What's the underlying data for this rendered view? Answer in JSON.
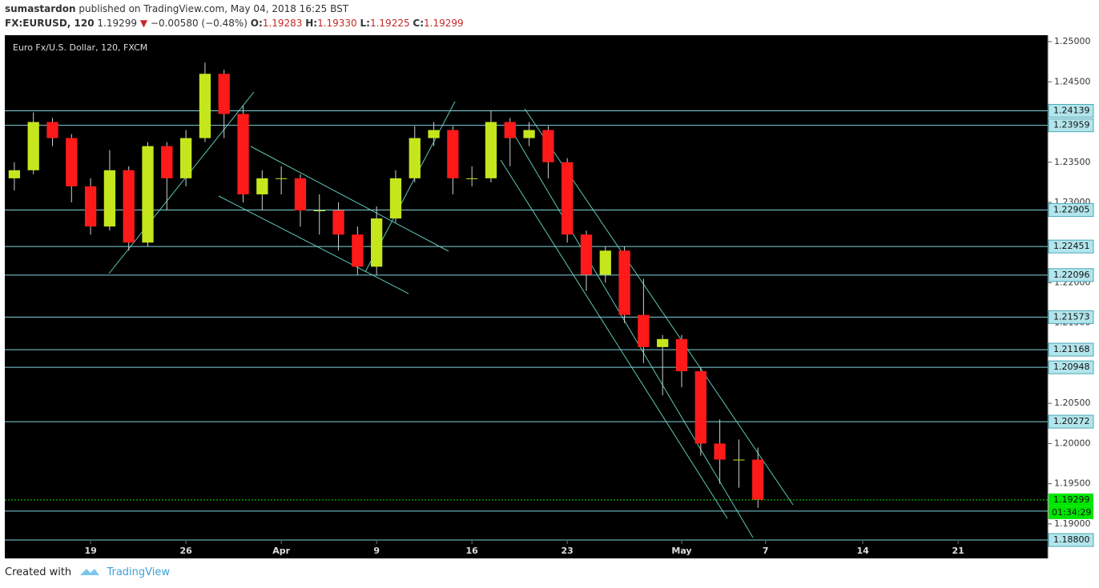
{
  "header": {
    "author": "sumastardon",
    "published": "published on TradingView.com, May 04, 2018 16:25 BST"
  },
  "legend": {
    "symbol": "FX:EURUSD, 120",
    "last": "1.19299",
    "arrow": "▼",
    "change": "−0.00580 (−0.48%)",
    "o_label": "O:",
    "o": "1.19283",
    "h_label": "H:",
    "h": "1.19330",
    "l_label": "L:",
    "l": "1.19225",
    "c_label": "C:",
    "c": "1.19299"
  },
  "chart_data": {
    "type": "candlestick",
    "title": "Euro Fx/U.S. Dollar, 120, FXCM",
    "x": [
      0,
      1,
      2,
      3,
      4,
      5,
      6,
      7,
      8,
      9,
      10,
      11,
      12,
      13,
      14,
      15,
      16,
      17,
      18,
      19,
      20,
      21,
      22,
      23,
      24,
      25,
      26,
      27,
      28,
      29,
      30,
      31,
      32,
      33,
      34,
      35,
      36,
      37,
      38,
      39
    ],
    "open": [
      1.233,
      1.234,
      1.24,
      1.238,
      1.232,
      1.227,
      1.234,
      1.225,
      1.237,
      1.233,
      1.238,
      1.246,
      1.241,
      1.231,
      1.233,
      1.233,
      1.229,
      1.229,
      1.226,
      1.222,
      1.228,
      1.233,
      1.238,
      1.239,
      1.233,
      1.233,
      1.24,
      1.238,
      1.239,
      1.235,
      1.226,
      1.221,
      1.224,
      1.216,
      1.212,
      1.213,
      1.209,
      1.2,
      1.198,
      1.198
    ],
    "high": [
      1.235,
      1.2412,
      1.2405,
      1.2385,
      1.233,
      1.2365,
      1.2345,
      1.2375,
      1.2375,
      1.239,
      1.2474,
      1.2465,
      1.242,
      1.234,
      1.2345,
      1.2335,
      1.231,
      1.23,
      1.227,
      1.2295,
      1.234,
      1.2395,
      1.24,
      1.2395,
      1.2345,
      1.2414,
      1.2405,
      1.24,
      1.2395,
      1.2355,
      1.2265,
      1.2245,
      1.2245,
      1.2205,
      1.2135,
      1.2135,
      1.2095,
      1.203,
      1.2005,
      1.1995
    ],
    "low": [
      1.2315,
      1.2335,
      1.237,
      1.23,
      1.226,
      1.2265,
      1.224,
      1.2245,
      1.229,
      1.232,
      1.2375,
      1.238,
      1.23,
      1.229,
      1.231,
      1.227,
      1.226,
      1.224,
      1.221,
      1.221,
      1.2275,
      1.2325,
      1.237,
      1.231,
      1.232,
      1.2325,
      1.2345,
      1.237,
      1.233,
      1.225,
      1.219,
      1.22,
      1.215,
      1.21,
      1.206,
      1.207,
      1.1985,
      1.195,
      1.1945,
      1.192
    ],
    "close": [
      1.234,
      1.24,
      1.238,
      1.232,
      1.227,
      1.234,
      1.225,
      1.237,
      1.233,
      1.238,
      1.246,
      1.241,
      1.231,
      1.233,
      1.233,
      1.229,
      1.229,
      1.226,
      1.222,
      1.228,
      1.233,
      1.238,
      1.239,
      1.233,
      1.233,
      1.24,
      1.238,
      1.239,
      1.235,
      1.226,
      1.221,
      1.224,
      1.216,
      1.212,
      1.213,
      1.209,
      1.2,
      1.198,
      1.198,
      1.193
    ],
    "up_color": "#c5e61c",
    "down_color": "#ff1a1a",
    "wick_color": "#cfcfcf",
    "level_color": "#7fd3dc",
    "last_color": "#00e600",
    "xlim": [
      -0.5,
      54.2
    ],
    "xticks": [
      {
        "value": 4,
        "label": "19"
      },
      {
        "value": 9,
        "label": "26"
      },
      {
        "value": 14,
        "label": "Apr"
      },
      {
        "value": 19,
        "label": "9"
      },
      {
        "value": 24,
        "label": "16"
      },
      {
        "value": 29,
        "label": "23"
      },
      {
        "value": 35,
        "label": "May"
      },
      {
        "value": 39.4,
        "label": "7"
      },
      {
        "value": 44.5,
        "label": "14"
      },
      {
        "value": 49.5,
        "label": "21"
      }
    ],
    "ylim": [
      1.1879,
      1.2508
    ],
    "yticks": [
      {
        "value": 1.25,
        "label": "1.25000"
      },
      {
        "value": 1.245,
        "label": "1.24500"
      },
      {
        "value": 1.235,
        "label": "1.23500"
      },
      {
        "value": 1.23,
        "label": "1.23000"
      },
      {
        "value": 1.22,
        "label": "1.22000"
      },
      {
        "value": 1.215,
        "label": "1.21500"
      },
      {
        "value": 1.205,
        "label": "1.20500"
      },
      {
        "value": 1.2,
        "label": "1.20000"
      },
      {
        "value": 1.195,
        "label": "1.19500"
      },
      {
        "value": 1.19,
        "label": "1.19000"
      }
    ],
    "levels": [
      {
        "value": 1.24139,
        "label": "1.24139"
      },
      {
        "value": 1.23959,
        "label": "1.23959"
      },
      {
        "value": 1.22905,
        "label": "1.22905"
      },
      {
        "value": 1.22451,
        "label": "1.22451"
      },
      {
        "value": 1.22096,
        "label": "1.22096"
      },
      {
        "value": 1.21573,
        "label": "1.21573"
      },
      {
        "value": 1.21168,
        "label": "1.21168"
      },
      {
        "value": 1.20948,
        "label": "1.20948"
      },
      {
        "value": 1.20272,
        "label": "1.20272"
      },
      {
        "value": 1.188,
        "label": "1.18800"
      }
    ],
    "other_lines": [
      1.1916
    ],
    "last_price": 1.19299,
    "countdown": "01:34:29"
  },
  "footer": {
    "created": "Created with",
    "brand": "TradingView"
  }
}
